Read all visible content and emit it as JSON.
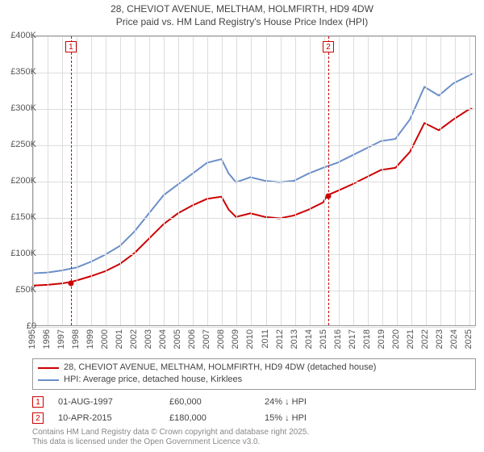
{
  "title_line1": "28, CHEVIOT AVENUE, MELTHAM, HOLMFIRTH, HD9 4DW",
  "title_line2": "Price paid vs. HM Land Registry's House Price Index (HPI)",
  "chart": {
    "type": "line",
    "background_color": "#ffffff",
    "grid_color": "#dddddd",
    "axis_color": "#999999",
    "label_color": "#555555",
    "label_fontsize": 11,
    "xlim": [
      1995,
      2025.5
    ],
    "ylim": [
      0,
      400
    ],
    "ytick_step": 50,
    "yticks": [
      0,
      50,
      100,
      150,
      200,
      250,
      300,
      350,
      400
    ],
    "ytick_labels": [
      "£0",
      "£50K",
      "£100K",
      "£150K",
      "£200K",
      "£250K",
      "£300K",
      "£350K",
      "£400K"
    ],
    "xticks": [
      1995,
      1996,
      1997,
      1998,
      1999,
      2000,
      2001,
      2002,
      2003,
      2004,
      2005,
      2006,
      2007,
      2008,
      2009,
      2010,
      2011,
      2012,
      2013,
      2014,
      2015,
      2016,
      2017,
      2018,
      2019,
      2020,
      2021,
      2022,
      2023,
      2024,
      2025
    ],
    "series": [
      {
        "name": "price_paid",
        "color": "#cc0000",
        "line_width": 2,
        "x": [
          1995,
          1996,
          1997,
          1997.6,
          1998,
          1999,
          2000,
          2001,
          2002,
          2003,
          2004,
          2005,
          2006,
          2007,
          2008,
          2008.5,
          2009,
          2010,
          2011,
          2012,
          2013,
          2014,
          2015,
          2015.3,
          2016,
          2017,
          2018,
          2019,
          2020,
          2021,
          2022,
          2023,
          2024,
          2025,
          2025.3
        ],
        "y": [
          55,
          56,
          58,
          60,
          62,
          68,
          75,
          85,
          100,
          120,
          140,
          155,
          166,
          175,
          178,
          160,
          150,
          155,
          150,
          148,
          152,
          160,
          170,
          180,
          186,
          195,
          205,
          215,
          218,
          240,
          280,
          270,
          285,
          298,
          300
        ]
      },
      {
        "name": "hpi",
        "color": "#6b8fc9",
        "line_width": 2,
        "x": [
          1995,
          1996,
          1997,
          1998,
          1999,
          2000,
          2001,
          2002,
          2003,
          2004,
          2005,
          2006,
          2007,
          2008,
          2008.5,
          2009,
          2010,
          2011,
          2012,
          2013,
          2014,
          2015,
          2016,
          2017,
          2018,
          2019,
          2020,
          2021,
          2022,
          2023,
          2024,
          2025,
          2025.3
        ],
        "y": [
          72,
          73,
          76,
          80,
          88,
          98,
          110,
          130,
          155,
          180,
          195,
          210,
          225,
          230,
          210,
          198,
          205,
          200,
          198,
          200,
          210,
          218,
          225,
          235,
          245,
          255,
          258,
          285,
          330,
          318,
          335,
          345,
          348
        ]
      }
    ],
    "sale_points": [
      {
        "x": 1997.6,
        "y": 60,
        "color": "#cc0000"
      },
      {
        "x": 2015.3,
        "y": 180,
        "color": "#cc0000"
      }
    ],
    "event_markers": [
      {
        "label": "1",
        "x": 1997.6,
        "color": "#cc0000"
      },
      {
        "label": "2",
        "x": 2015.3,
        "color": "#cc0000"
      }
    ]
  },
  "legend": {
    "items": [
      {
        "color": "#cc0000",
        "label": "28, CHEVIOT AVENUE, MELTHAM, HOLMFIRTH, HD9 4DW (detached house)"
      },
      {
        "color": "#6b8fc9",
        "label": "HPI: Average price, detached house, Kirklees"
      }
    ]
  },
  "events": [
    {
      "marker": "1",
      "date": "01-AUG-1997",
      "price": "£60,000",
      "delta": "24% ↓ HPI"
    },
    {
      "marker": "2",
      "date": "10-APR-2015",
      "price": "£180,000",
      "delta": "15% ↓ HPI"
    }
  ],
  "footer_line1": "Contains HM Land Registry data © Crown copyright and database right 2025.",
  "footer_line2": "This data is licensed under the Open Government Licence v3.0."
}
